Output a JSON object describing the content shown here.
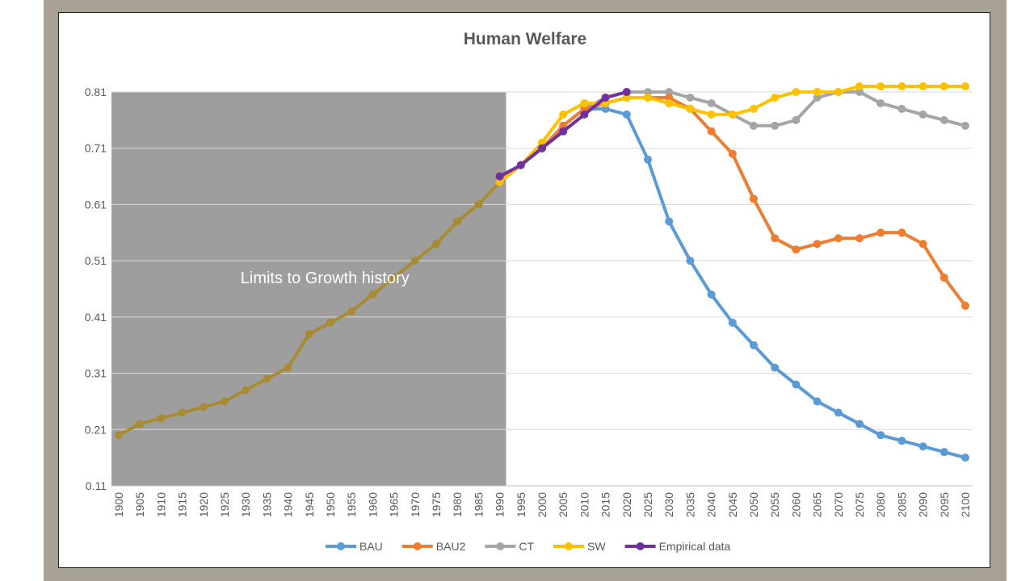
{
  "chart_data": {
    "type": "line",
    "title": "Human Welfare",
    "ylim": [
      0.11,
      0.81
    ],
    "yticks": [
      "0.81",
      "0.71",
      "0.61",
      "0.51",
      "0.41",
      "0.31",
      "0.21",
      "0.11"
    ],
    "grid": true,
    "legend_position": "bottom",
    "x": [
      1900,
      1905,
      1910,
      1915,
      1920,
      1925,
      1930,
      1935,
      1940,
      1945,
      1950,
      1955,
      1960,
      1965,
      1970,
      1975,
      1980,
      1985,
      1990,
      1995,
      2000,
      2005,
      2010,
      2015,
      2020,
      2025,
      2030,
      2035,
      2040,
      2045,
      2050,
      2055,
      2060,
      2065,
      2070,
      2075,
      2080,
      2085,
      2090,
      2095,
      2100
    ],
    "xticks": [
      "1900",
      "1905",
      "1910",
      "1915",
      "1920",
      "1925",
      "1930",
      "1935",
      "1940",
      "1945",
      "1950",
      "1955",
      "1960",
      "1965",
      "1970",
      "1975",
      "1980",
      "1985",
      "1990",
      "1995",
      "2000",
      "2005",
      "2010",
      "2015",
      "2020",
      "2025",
      "2030",
      "2035",
      "2040",
      "2045",
      "2050",
      "2055",
      "2060",
      "2065",
      "2070",
      "2075",
      "2080",
      "2085",
      "2090",
      "2095",
      "2100"
    ],
    "shaded_region": {
      "x_start": 1900,
      "x_end": 1991.5,
      "label": "Limits to Growth history",
      "color": "#9e9e9e"
    },
    "history": {
      "color": "#a88b33",
      "x": [
        1900,
        1905,
        1910,
        1915,
        1920,
        1925,
        1930,
        1935,
        1940,
        1945,
        1950,
        1955,
        1960,
        1965,
        1970,
        1975,
        1980,
        1985,
        1990
      ],
      "values": [
        0.2,
        0.22,
        0.23,
        0.24,
        0.25,
        0.26,
        0.28,
        0.3,
        0.32,
        0.38,
        0.4,
        0.42,
        0.45,
        0.48,
        0.51,
        0.54,
        0.58,
        0.61,
        0.65
      ]
    },
    "series": [
      {
        "name": "BAU",
        "color": "#5b9bd5",
        "x": [
          1990,
          1995,
          2000,
          2005,
          2010,
          2015,
          2020,
          2025,
          2030,
          2035,
          2040,
          2045,
          2050,
          2055,
          2060,
          2065,
          2070,
          2075,
          2080,
          2085,
          2090,
          2095,
          2100
        ],
        "values": [
          0.65,
          0.68,
          0.71,
          0.75,
          0.78,
          0.78,
          0.77,
          0.69,
          0.58,
          0.51,
          0.45,
          0.4,
          0.36,
          0.32,
          0.29,
          0.26,
          0.24,
          0.22,
          0.2,
          0.19,
          0.18,
          0.17,
          0.16
        ]
      },
      {
        "name": "BAU2",
        "color": "#ed7d31",
        "x": [
          1990,
          1995,
          2000,
          2005,
          2010,
          2015,
          2020,
          2025,
          2030,
          2035,
          2040,
          2045,
          2050,
          2055,
          2060,
          2065,
          2070,
          2075,
          2080,
          2085,
          2090,
          2095,
          2100
        ],
        "values": [
          0.65,
          0.68,
          0.71,
          0.75,
          0.78,
          0.79,
          0.8,
          0.8,
          0.8,
          0.78,
          0.74,
          0.7,
          0.62,
          0.55,
          0.53,
          0.54,
          0.55,
          0.55,
          0.56,
          0.56,
          0.54,
          0.48,
          0.43
        ]
      },
      {
        "name": "CT",
        "color": "#a5a5a5",
        "x": [
          1990,
          1995,
          2000,
          2005,
          2010,
          2015,
          2020,
          2025,
          2030,
          2035,
          2040,
          2045,
          2050,
          2055,
          2060,
          2065,
          2070,
          2075,
          2080,
          2085,
          2090,
          2095,
          2100
        ],
        "values": [
          0.65,
          0.68,
          0.71,
          0.75,
          0.78,
          0.8,
          0.81,
          0.81,
          0.81,
          0.8,
          0.79,
          0.77,
          0.75,
          0.75,
          0.76,
          0.8,
          0.81,
          0.81,
          0.79,
          0.78,
          0.77,
          0.76,
          0.75
        ]
      },
      {
        "name": "SW",
        "color": "#ffc000",
        "x": [
          1990,
          1995,
          2000,
          2005,
          2010,
          2015,
          2020,
          2025,
          2030,
          2035,
          2040,
          2045,
          2050,
          2055,
          2060,
          2065,
          2070,
          2075,
          2080,
          2085,
          2090,
          2095,
          2100
        ],
        "values": [
          0.65,
          0.68,
          0.72,
          0.77,
          0.79,
          0.79,
          0.8,
          0.8,
          0.79,
          0.78,
          0.77,
          0.77,
          0.78,
          0.8,
          0.81,
          0.81,
          0.81,
          0.82,
          0.82,
          0.82,
          0.82,
          0.82,
          0.82
        ]
      },
      {
        "name": "Empirical data",
        "color": "#7030a0",
        "x": [
          1990,
          1995,
          2000,
          2005,
          2010,
          2015,
          2020
        ],
        "values": [
          0.66,
          0.68,
          0.71,
          0.74,
          0.77,
          0.8,
          0.81
        ]
      }
    ]
  }
}
